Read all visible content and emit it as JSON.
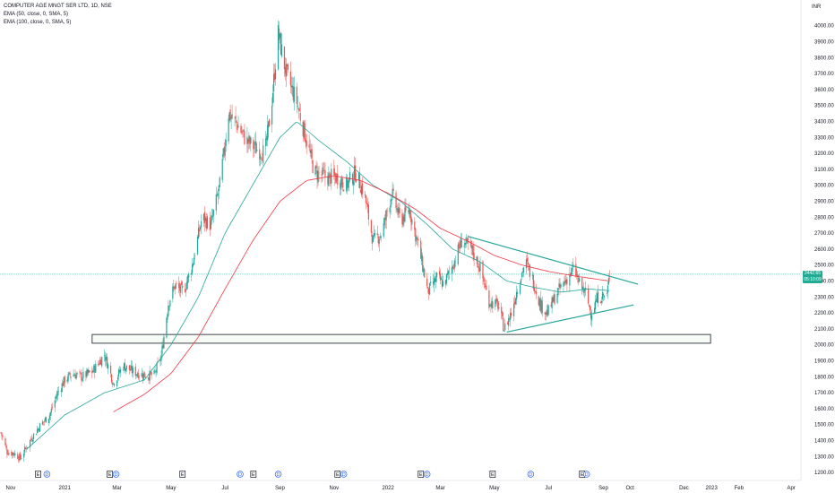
{
  "legend": {
    "title": "COMPUTER AGE MNGT SER LTD, 1D, NSE",
    "ema1": "EMA (50, close, 0, SMA, 5)",
    "ema2": "EMA (100, close, 0, SMA, 5)"
  },
  "currency": "INR",
  "last_price": {
    "value": "2442.65",
    "countdown": "05:10:09"
  },
  "chart_data": {
    "type": "candlestick",
    "title": "COMPUTER AGE MNGT SER LTD, 1D, NSE",
    "y_unit": "INR",
    "ylim": [
      1150,
      4150
    ],
    "y_ticks": [
      1200,
      1300,
      1400,
      1500,
      1600,
      1700,
      1800,
      1900,
      2000,
      2100,
      2200,
      2300,
      2400,
      2500,
      2600,
      2700,
      2800,
      2900,
      3000,
      3100,
      3200,
      3300,
      3400,
      3500,
      3600,
      3700,
      3800,
      3900,
      4000
    ],
    "y_tick_labels": [
      "1200.00",
      "1300.00",
      "1400.00",
      "1500.00",
      "1600.00",
      "1700.00",
      "1800.00",
      "1900.00",
      "2000.00",
      "2100.00",
      "2200.00",
      "2300.00",
      "2400.00",
      "2500.00",
      "2600.00",
      "2700.00",
      "2800.00",
      "2900.00",
      "3000.00",
      "3100.00",
      "3200.00",
      "3300.00",
      "3400.00",
      "3500.00",
      "3600.00",
      "3700.00",
      "3800.00",
      "3900.00",
      "4000.00"
    ],
    "x_range": [
      "2020-10-20",
      "2023-04-12"
    ],
    "x_ticks": [
      {
        "date": "2020-11-01",
        "label": "Nov"
      },
      {
        "date": "2021-01-01",
        "label": "2021"
      },
      {
        "date": "2021-03-01",
        "label": "Mar"
      },
      {
        "date": "2021-05-01",
        "label": "May"
      },
      {
        "date": "2021-07-01",
        "label": "Jul"
      },
      {
        "date": "2021-09-01",
        "label": "Sep"
      },
      {
        "date": "2021-11-01",
        "label": "Nov"
      },
      {
        "date": "2022-01-01",
        "label": "2022"
      },
      {
        "date": "2022-03-01",
        "label": "Mar"
      },
      {
        "date": "2022-05-01",
        "label": "May"
      },
      {
        "date": "2022-07-01",
        "label": "Jul"
      },
      {
        "date": "2022-09-01",
        "label": "Sep"
      },
      {
        "date": "2022-10-01",
        "label": "Oct"
      },
      {
        "date": "2022-12-01",
        "label": "Dec"
      },
      {
        "date": "2023-01-01",
        "label": "2023"
      },
      {
        "date": "2023-02-01",
        "label": "Feb"
      },
      {
        "date": "2023-04-01",
        "label": "Apr"
      }
    ],
    "price_keypoints": [
      [
        "2020-10-21",
        1450
      ],
      [
        "2020-10-28",
        1330
      ],
      [
        "2020-11-05",
        1320
      ],
      [
        "2020-11-12",
        1290
      ],
      [
        "2020-11-24",
        1410
      ],
      [
        "2020-12-05",
        1500
      ],
      [
        "2020-12-15",
        1560
      ],
      [
        "2020-12-24",
        1700
      ],
      [
        "2021-01-01",
        1780
      ],
      [
        "2021-01-10",
        1820
      ],
      [
        "2021-01-20",
        1800
      ],
      [
        "2021-02-01",
        1830
      ],
      [
        "2021-02-15",
        1940
      ],
      [
        "2021-02-25",
        1760
      ],
      [
        "2021-03-08",
        1870
      ],
      [
        "2021-03-20",
        1830
      ],
      [
        "2021-04-01",
        1810
      ],
      [
        "2021-04-12",
        1810
      ],
      [
        "2021-04-20",
        1930
      ],
      [
        "2021-04-28",
        2260
      ],
      [
        "2021-05-05",
        2370
      ],
      [
        "2021-05-15",
        2330
      ],
      [
        "2021-05-25",
        2500
      ],
      [
        "2021-06-05",
        2800
      ],
      [
        "2021-06-15",
        2750
      ],
      [
        "2021-06-25",
        3000
      ],
      [
        "2021-07-05",
        3450
      ],
      [
        "2021-07-15",
        3380
      ],
      [
        "2021-07-25",
        3280
      ],
      [
        "2021-08-05",
        3230
      ],
      [
        "2021-08-15",
        3200
      ],
      [
        "2021-08-22",
        3480
      ],
      [
        "2021-08-30",
        3950
      ],
      [
        "2021-09-08",
        3700
      ],
      [
        "2021-09-20",
        3520
      ],
      [
        "2021-09-30",
        3300
      ],
      [
        "2021-10-10",
        3080
      ],
      [
        "2021-10-25",
        3050
      ],
      [
        "2021-11-05",
        3050
      ],
      [
        "2021-11-15",
        3000
      ],
      [
        "2021-11-25",
        3080
      ],
      [
        "2021-12-05",
        2950
      ],
      [
        "2021-12-15",
        2650
      ],
      [
        "2021-12-25",
        2700
      ],
      [
        "2022-01-05",
        2950
      ],
      [
        "2022-01-15",
        2780
      ],
      [
        "2022-01-25",
        2850
      ],
      [
        "2022-02-05",
        2600
      ],
      [
        "2022-02-15",
        2330
      ],
      [
        "2022-02-25",
        2420
      ],
      [
        "2022-03-05",
        2380
      ],
      [
        "2022-03-15",
        2500
      ],
      [
        "2022-03-25",
        2650
      ],
      [
        "2022-04-05",
        2600
      ],
      [
        "2022-04-15",
        2480
      ],
      [
        "2022-04-25",
        2270
      ],
      [
        "2022-05-05",
        2250
      ],
      [
        "2022-05-12",
        2100
      ],
      [
        "2022-05-20",
        2200
      ],
      [
        "2022-05-28",
        2380
      ],
      [
        "2022-06-05",
        2520
      ],
      [
        "2022-06-12",
        2430
      ],
      [
        "2022-06-22",
        2250
      ],
      [
        "2022-06-30",
        2200
      ],
      [
        "2022-07-10",
        2320
      ],
      [
        "2022-07-20",
        2400
      ],
      [
        "2022-07-30",
        2480
      ],
      [
        "2022-08-05",
        2380
      ],
      [
        "2022-08-12",
        2320
      ],
      [
        "2022-08-18",
        2200
      ],
      [
        "2022-08-26",
        2300
      ],
      [
        "2022-09-05",
        2310
      ],
      [
        "2022-09-08",
        2442.65
      ]
    ],
    "series": [
      {
        "type": "ema",
        "color": "#26a69a",
        "keypoints": [
          [
            "2020-11-20",
            1350
          ],
          [
            "2021-01-01",
            1560
          ],
          [
            "2021-02-15",
            1700
          ],
          [
            "2021-04-01",
            1780
          ],
          [
            "2021-05-01",
            2000
          ],
          [
            "2021-06-01",
            2300
          ],
          [
            "2021-07-01",
            2700
          ],
          [
            "2021-08-01",
            3000
          ],
          [
            "2021-09-01",
            3300
          ],
          [
            "2021-09-20",
            3400
          ],
          [
            "2021-10-15",
            3280
          ],
          [
            "2021-11-15",
            3150
          ],
          [
            "2021-12-15",
            3000
          ],
          [
            "2022-01-15",
            2900
          ],
          [
            "2022-02-15",
            2750
          ],
          [
            "2022-03-15",
            2600
          ],
          [
            "2022-04-15",
            2520
          ],
          [
            "2022-05-15",
            2400
          ],
          [
            "2022-06-15",
            2360
          ],
          [
            "2022-07-15",
            2330
          ],
          [
            "2022-08-15",
            2350
          ],
          [
            "2022-09-08",
            2340
          ]
        ]
      },
      {
        "type": "ema",
        "color": "#f23645",
        "keypoints": [
          [
            "2021-02-25",
            1580
          ],
          [
            "2021-04-01",
            1690
          ],
          [
            "2021-05-01",
            1820
          ],
          [
            "2021-06-01",
            2050
          ],
          [
            "2021-07-01",
            2350
          ],
          [
            "2021-08-01",
            2650
          ],
          [
            "2021-09-01",
            2900
          ],
          [
            "2021-10-01",
            3030
          ],
          [
            "2021-11-01",
            3060
          ],
          [
            "2021-12-01",
            3030
          ],
          [
            "2022-01-01",
            2950
          ],
          [
            "2022-02-01",
            2850
          ],
          [
            "2022-03-01",
            2730
          ],
          [
            "2022-04-01",
            2650
          ],
          [
            "2022-05-01",
            2560
          ],
          [
            "2022-06-01",
            2500
          ],
          [
            "2022-07-01",
            2460
          ],
          [
            "2022-08-01",
            2430
          ],
          [
            "2022-09-08",
            2400
          ]
        ]
      }
    ],
    "annotations": {
      "support_zone": {
        "from": "2021-02-01",
        "to": "2022-12-31",
        "low": 2010,
        "high": 2065
      },
      "upper_trendline": [
        [
          "2022-04-01",
          2680
        ],
        [
          "2022-10-10",
          2380
        ]
      ],
      "lower_trendline": [
        [
          "2022-05-15",
          2080
        ],
        [
          "2022-10-05",
          2250
        ]
      ],
      "last_price_line": 2442.65
    },
    "events": [
      {
        "date": "2020-12-02",
        "kind": "E"
      },
      {
        "date": "2020-12-12",
        "kind": "D"
      },
      {
        "date": "2021-02-21",
        "kind": "E"
      },
      {
        "date": "2021-02-28",
        "kind": "D"
      },
      {
        "date": "2021-05-14",
        "kind": "E"
      },
      {
        "date": "2021-07-18",
        "kind": "D"
      },
      {
        "date": "2021-08-02",
        "kind": "E"
      },
      {
        "date": "2021-08-30",
        "kind": "D"
      },
      {
        "date": "2021-11-05",
        "kind": "E"
      },
      {
        "date": "2021-11-12",
        "kind": "D"
      },
      {
        "date": "2022-02-07",
        "kind": "E"
      },
      {
        "date": "2022-02-14",
        "kind": "D"
      },
      {
        "date": "2022-04-29",
        "kind": "E"
      },
      {
        "date": "2022-06-11",
        "kind": "D"
      },
      {
        "date": "2022-08-08",
        "kind": "E"
      },
      {
        "date": "2022-08-13",
        "kind": "D"
      }
    ]
  }
}
